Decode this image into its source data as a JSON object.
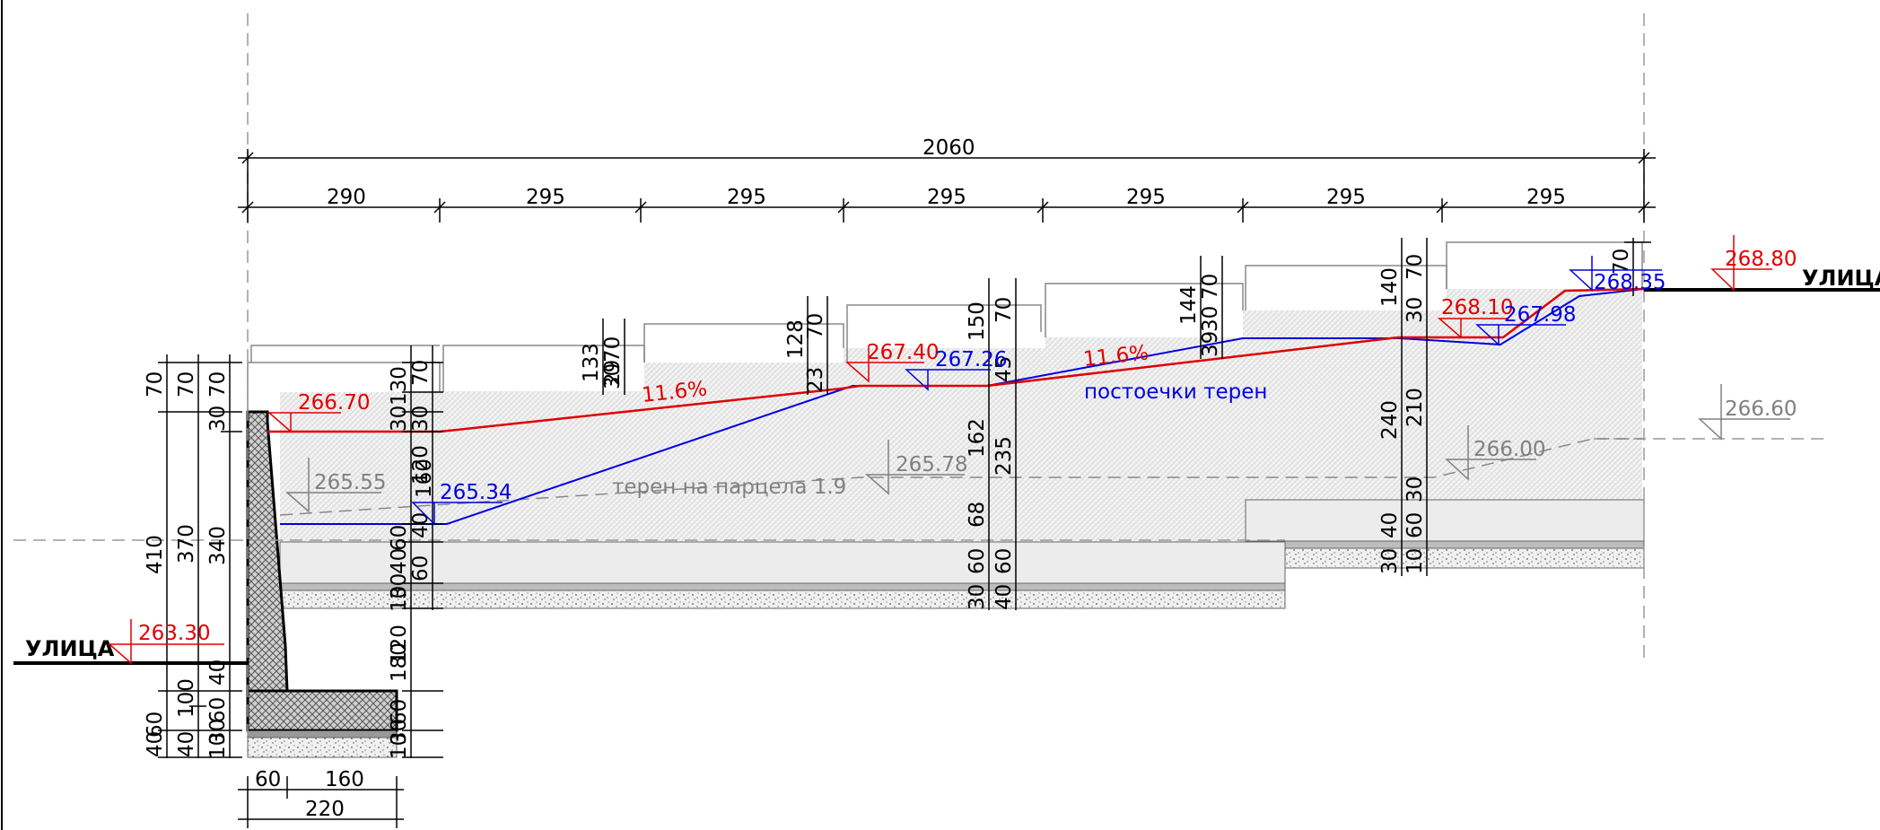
{
  "top_dims": {
    "overall": "2060",
    "segments": [
      "290",
      "295",
      "295",
      "295",
      "295",
      "295",
      "295"
    ]
  },
  "street_labels": {
    "left": "УЛИЦА",
    "right": "УЛИЦА"
  },
  "levels": {
    "street_left": "263.30",
    "street_right": "268.80",
    "wall_top": "266.70",
    "terrace_2": "267.40",
    "terrace_3": "268.10",
    "blue_1": "265.34",
    "blue_2": "267.26",
    "blue_3": "267.98",
    "blue_4": "268.35",
    "grey_1": "265.55",
    "grey_2": "265.78",
    "grey_3": "266.00",
    "grey_4": "266.60"
  },
  "slopes": {
    "slope_1": "11.6%",
    "slope_2": "11.6%"
  },
  "notes": {
    "existing_terrain": "постоечки терен",
    "plot_terrain": "терен на парцела 1.9"
  },
  "left_dims": {
    "col1": [
      "70",
      "410",
      "40",
      "60"
    ],
    "col1b": [
      "40",
      "60",
      "30",
      "10"
    ],
    "col2": [
      "70",
      "370",
      "40",
      "100",
      "40"
    ],
    "col3": [
      "70",
      "30",
      "340",
      "40",
      "60",
      "30",
      "10"
    ]
  },
  "wall_dims": [
    "130",
    "70",
    "30",
    "30",
    "120",
    "160",
    "40",
    "40",
    "60",
    "30",
    "10",
    "120",
    "180",
    "40",
    "60",
    "30",
    "10"
  ],
  "bottom_dims": {
    "toe": "60",
    "heel": "160",
    "base": "220"
  },
  "mid_dims_1": [
    "133",
    "70",
    "29",
    "30"
  ],
  "mid_dims_2": [
    "128",
    "70",
    "23",
    "30"
  ],
  "mid_dims_3": [
    "150",
    "70",
    "45",
    "30",
    "162",
    "235",
    "68",
    "60",
    "40",
    "30",
    "10",
    "60",
    "40"
  ],
  "mid_dims_4": [
    "144",
    "70",
    "39",
    "30"
  ],
  "right_dims": [
    "140",
    "70",
    "40",
    "30",
    "240",
    "210",
    "30",
    "40",
    "60",
    "30",
    "10"
  ]
}
